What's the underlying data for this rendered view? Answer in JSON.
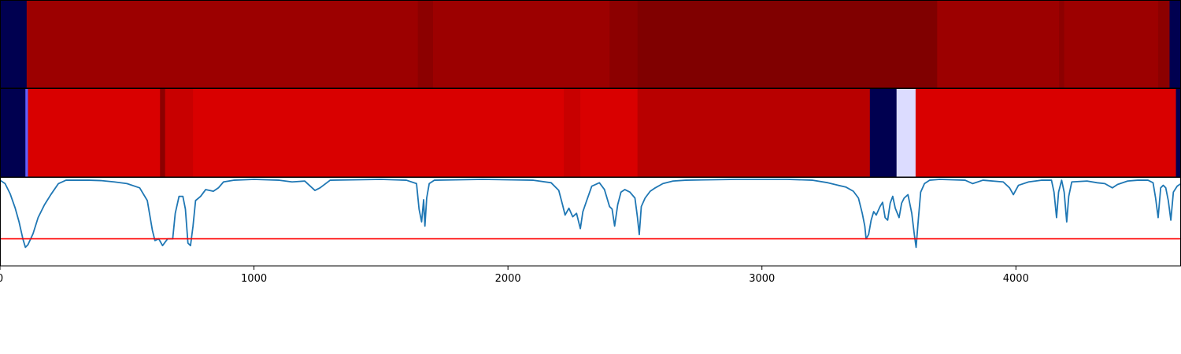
{
  "chart_data": {
    "type": "heatmap",
    "x_range": [
      0,
      4650
    ],
    "x_ticks": [
      0,
      1000,
      2000,
      3000,
      4000
    ],
    "x_tick_labels": [
      "0",
      "1000",
      "2000",
      "3000",
      "4000"
    ],
    "colormap": "seismic",
    "color_scale": [
      {
        "name": "navy",
        "color": "#000050"
      },
      {
        "name": "light-blue",
        "color": "#dcdcff"
      },
      {
        "name": "medium-blue",
        "color": "#6060ff"
      },
      {
        "name": "bright-red",
        "color": "#d90000"
      },
      {
        "name": "red",
        "color": "#c80000"
      },
      {
        "name": "deep-red",
        "color": "#b80000"
      },
      {
        "name": "dark-red",
        "color": "#9c0000"
      },
      {
        "name": "darker-red",
        "color": "#8c0000"
      },
      {
        "name": "maroon",
        "color": "#800000"
      }
    ],
    "heatmap_rows": [
      {
        "segments": [
          {
            "start": 0,
            "end": 105,
            "color": "#000050"
          },
          {
            "start": 105,
            "end": 1645,
            "color": "#9c0000"
          },
          {
            "start": 1645,
            "end": 1705,
            "color": "#8c0000"
          },
          {
            "start": 1705,
            "end": 2400,
            "color": "#9c0000"
          },
          {
            "start": 2400,
            "end": 2510,
            "color": "#8c0000"
          },
          {
            "start": 2510,
            "end": 3690,
            "color": "#800000"
          },
          {
            "start": 3690,
            "end": 4170,
            "color": "#9c0000"
          },
          {
            "start": 4170,
            "end": 4190,
            "color": "#8c0000"
          },
          {
            "start": 4190,
            "end": 4560,
            "color": "#9c0000"
          },
          {
            "start": 4560,
            "end": 4605,
            "color": "#8c0000"
          },
          {
            "start": 4605,
            "end": 4650,
            "color": "#000050"
          }
        ]
      },
      {
        "segments": [
          {
            "start": 0,
            "end": 100,
            "color": "#000050"
          },
          {
            "start": 100,
            "end": 110,
            "color": "#6060ff"
          },
          {
            "start": 110,
            "end": 630,
            "color": "#d90000"
          },
          {
            "start": 630,
            "end": 650,
            "color": "#8c0000"
          },
          {
            "start": 650,
            "end": 760,
            "color": "#c80000"
          },
          {
            "start": 760,
            "end": 2220,
            "color": "#d90000"
          },
          {
            "start": 2220,
            "end": 2285,
            "color": "#c80000"
          },
          {
            "start": 2285,
            "end": 2510,
            "color": "#d90000"
          },
          {
            "start": 2510,
            "end": 3425,
            "color": "#b80000"
          },
          {
            "start": 3425,
            "end": 3530,
            "color": "#000050"
          },
          {
            "start": 3530,
            "end": 3605,
            "color": "#dcdcff"
          },
          {
            "start": 3605,
            "end": 4630,
            "color": "#d90000"
          },
          {
            "start": 4630,
            "end": 4650,
            "color": "#000050"
          }
        ]
      }
    ],
    "line_series": {
      "color": "#1f77b4",
      "y_range": [
        0,
        1
      ],
      "points": [
        [
          0,
          0.99
        ],
        [
          20,
          0.95
        ],
        [
          40,
          0.83
        ],
        [
          60,
          0.66
        ],
        [
          75,
          0.5
        ],
        [
          90,
          0.3
        ],
        [
          100,
          0.2
        ],
        [
          110,
          0.23
        ],
        [
          130,
          0.36
        ],
        [
          150,
          0.55
        ],
        [
          175,
          0.7
        ],
        [
          200,
          0.82
        ],
        [
          230,
          0.95
        ],
        [
          260,
          0.99
        ],
        [
          350,
          0.99
        ],
        [
          400,
          0.985
        ],
        [
          450,
          0.97
        ],
        [
          500,
          0.95
        ],
        [
          550,
          0.9
        ],
        [
          580,
          0.75
        ],
        [
          600,
          0.4
        ],
        [
          610,
          0.28
        ],
        [
          625,
          0.3
        ],
        [
          640,
          0.22
        ],
        [
          660,
          0.3
        ],
        [
          680,
          0.3
        ],
        [
          690,
          0.6
        ],
        [
          705,
          0.8
        ],
        [
          720,
          0.8
        ],
        [
          730,
          0.65
        ],
        [
          740,
          0.25
        ],
        [
          750,
          0.22
        ],
        [
          760,
          0.45
        ],
        [
          770,
          0.75
        ],
        [
          790,
          0.8
        ],
        [
          810,
          0.88
        ],
        [
          840,
          0.86
        ],
        [
          860,
          0.9
        ],
        [
          880,
          0.97
        ],
        [
          920,
          0.99
        ],
        [
          1000,
          1.0
        ],
        [
          1100,
          0.99
        ],
        [
          1150,
          0.97
        ],
        [
          1200,
          0.98
        ],
        [
          1240,
          0.87
        ],
        [
          1260,
          0.9
        ],
        [
          1300,
          0.99
        ],
        [
          1500,
          1.0
        ],
        [
          1600,
          0.99
        ],
        [
          1640,
          0.95
        ],
        [
          1650,
          0.65
        ],
        [
          1660,
          0.5
        ],
        [
          1668,
          0.76
        ],
        [
          1673,
          0.45
        ],
        [
          1680,
          0.78
        ],
        [
          1690,
          0.95
        ],
        [
          1710,
          0.99
        ],
        [
          1900,
          1.0
        ],
        [
          2100,
          0.99
        ],
        [
          2170,
          0.96
        ],
        [
          2200,
          0.87
        ],
        [
          2215,
          0.7
        ],
        [
          2225,
          0.58
        ],
        [
          2240,
          0.66
        ],
        [
          2255,
          0.56
        ],
        [
          2270,
          0.6
        ],
        [
          2285,
          0.42
        ],
        [
          2295,
          0.62
        ],
        [
          2310,
          0.75
        ],
        [
          2330,
          0.92
        ],
        [
          2360,
          0.96
        ],
        [
          2380,
          0.88
        ],
        [
          2400,
          0.68
        ],
        [
          2410,
          0.65
        ],
        [
          2420,
          0.45
        ],
        [
          2432,
          0.7
        ],
        [
          2445,
          0.85
        ],
        [
          2460,
          0.88
        ],
        [
          2480,
          0.85
        ],
        [
          2500,
          0.78
        ],
        [
          2510,
          0.55
        ],
        [
          2517,
          0.35
        ],
        [
          2525,
          0.68
        ],
        [
          2540,
          0.78
        ],
        [
          2560,
          0.86
        ],
        [
          2580,
          0.9
        ],
        [
          2610,
          0.95
        ],
        [
          2650,
          0.98
        ],
        [
          2700,
          0.99
        ],
        [
          2900,
          1.0
        ],
        [
          3100,
          1.0
        ],
        [
          3200,
          0.99
        ],
        [
          3260,
          0.96
        ],
        [
          3300,
          0.93
        ],
        [
          3330,
          0.91
        ],
        [
          3360,
          0.86
        ],
        [
          3380,
          0.78
        ],
        [
          3395,
          0.6
        ],
        [
          3405,
          0.45
        ],
        [
          3410,
          0.3
        ],
        [
          3420,
          0.35
        ],
        [
          3430,
          0.52
        ],
        [
          3440,
          0.62
        ],
        [
          3450,
          0.58
        ],
        [
          3465,
          0.68
        ],
        [
          3475,
          0.73
        ],
        [
          3485,
          0.55
        ],
        [
          3495,
          0.52
        ],
        [
          3505,
          0.72
        ],
        [
          3515,
          0.8
        ],
        [
          3525,
          0.66
        ],
        [
          3540,
          0.55
        ],
        [
          3550,
          0.72
        ],
        [
          3560,
          0.78
        ],
        [
          3575,
          0.82
        ],
        [
          3590,
          0.6
        ],
        [
          3600,
          0.35
        ],
        [
          3607,
          0.2
        ],
        [
          3615,
          0.5
        ],
        [
          3625,
          0.85
        ],
        [
          3640,
          0.95
        ],
        [
          3660,
          0.99
        ],
        [
          3700,
          1.0
        ],
        [
          3800,
          0.99
        ],
        [
          3830,
          0.95
        ],
        [
          3870,
          0.99
        ],
        [
          3950,
          0.97
        ],
        [
          3975,
          0.9
        ],
        [
          3990,
          0.82
        ],
        [
          4010,
          0.93
        ],
        [
          4050,
          0.97
        ],
        [
          4100,
          0.99
        ],
        [
          4140,
          0.99
        ],
        [
          4150,
          0.85
        ],
        [
          4160,
          0.55
        ],
        [
          4168,
          0.85
        ],
        [
          4180,
          0.99
        ],
        [
          4190,
          0.85
        ],
        [
          4200,
          0.5
        ],
        [
          4208,
          0.8
        ],
        [
          4220,
          0.97
        ],
        [
          4280,
          0.98
        ],
        [
          4320,
          0.96
        ],
        [
          4350,
          0.95
        ],
        [
          4380,
          0.9
        ],
        [
          4400,
          0.94
        ],
        [
          4440,
          0.98
        ],
        [
          4480,
          0.99
        ],
        [
          4520,
          0.99
        ],
        [
          4540,
          0.96
        ],
        [
          4550,
          0.78
        ],
        [
          4560,
          0.55
        ],
        [
          4570,
          0.9
        ],
        [
          4580,
          0.93
        ],
        [
          4590,
          0.9
        ],
        [
          4600,
          0.75
        ],
        [
          4610,
          0.52
        ],
        [
          4620,
          0.85
        ],
        [
          4635,
          0.92
        ],
        [
          4650,
          0.95
        ]
      ]
    },
    "threshold": {
      "y": 0.3,
      "color": "#ff0000"
    }
  }
}
